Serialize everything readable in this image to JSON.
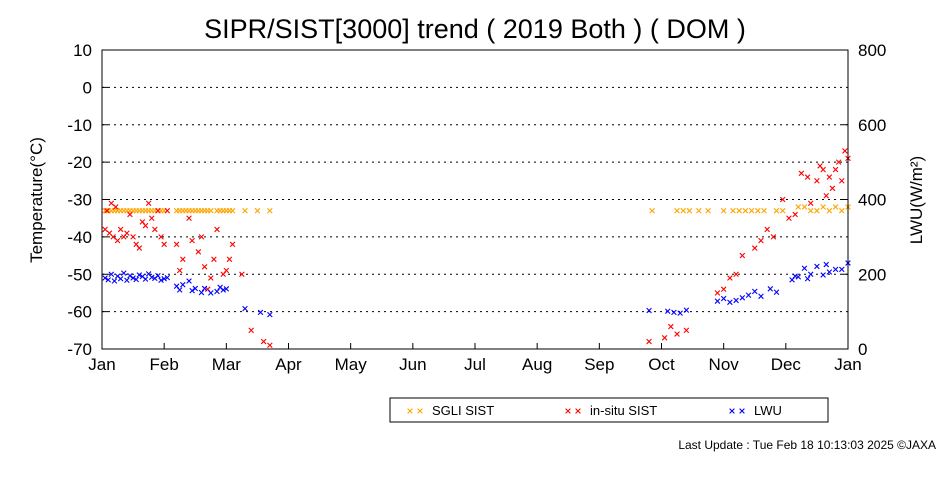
{
  "chart_data": {
    "type": "scatter",
    "title": "SIPR/SIST[3000] trend ( 2019 Both ) ( DOM )",
    "ylabel_left": "Temperature(°C)",
    "ylabel_right": "LWU(W/m²)",
    "ylim_left": [
      -70,
      10
    ],
    "ylim_right": [
      0,
      800
    ],
    "yticks_left": [
      "10",
      "0",
      "-10",
      "-20",
      "-30",
      "-40",
      "-50",
      "-60",
      "-70"
    ],
    "yticks_right": [
      "800",
      "600",
      "400",
      "200",
      "0"
    ],
    "x_range_months": [
      0,
      12
    ],
    "xtick_labels": [
      "Jan",
      "Feb",
      "Mar",
      "Apr",
      "May",
      "Jun",
      "Jul",
      "Aug",
      "Sep",
      "Oct",
      "Nov",
      "Dec",
      "Jan"
    ],
    "grid": "horizontal dotted",
    "legend_position": "bottom-right",
    "series": [
      {
        "name": "SGLI SIST",
        "color": "#ffa500",
        "axis": "left",
        "x": [
          0.05,
          0.1,
          0.15,
          0.2,
          0.25,
          0.3,
          0.35,
          0.4,
          0.45,
          0.5,
          0.55,
          0.6,
          0.65,
          0.7,
          0.75,
          0.8,
          0.85,
          0.9,
          0.95,
          1.0,
          1.2,
          1.25,
          1.3,
          1.35,
          1.4,
          1.45,
          1.5,
          1.55,
          1.6,
          1.65,
          1.7,
          1.75,
          1.85,
          1.9,
          1.95,
          2.0,
          2.05,
          2.1,
          2.3,
          2.5,
          2.7,
          8.85,
          9.25,
          9.35,
          9.45,
          9.6,
          9.75,
          10.0,
          10.15,
          10.25,
          10.35,
          10.45,
          10.55,
          10.65,
          10.85,
          10.95,
          11.2,
          11.3,
          11.4,
          11.5,
          11.6,
          11.7,
          11.8,
          11.9,
          12.0
        ],
        "y": [
          -33,
          -33,
          -33,
          -33,
          -33,
          -33,
          -33,
          -33,
          -33,
          -33,
          -33,
          -33,
          -33,
          -33,
          -33,
          -33,
          -33,
          -33,
          -33,
          -33,
          -33,
          -33,
          -33,
          -33,
          -33,
          -33,
          -33,
          -33,
          -33,
          -33,
          -33,
          -33,
          -33,
          -33,
          -33,
          -33,
          -33,
          -33,
          -33,
          -33,
          -33,
          -33,
          -33,
          -33,
          -33,
          -33,
          -33,
          -33,
          -33,
          -33,
          -33,
          -33,
          -33,
          -33,
          -33,
          -33,
          -32,
          -32,
          -33,
          -33,
          -32,
          -33,
          -32,
          -33,
          -32
        ]
      },
      {
        "name": "in-situ SIST",
        "color": "#ff0000",
        "axis": "left",
        "x": [
          0.05,
          0.08,
          0.12,
          0.15,
          0.18,
          0.22,
          0.25,
          0.3,
          0.35,
          0.4,
          0.45,
          0.5,
          0.55,
          0.6,
          0.65,
          0.7,
          0.75,
          0.8,
          0.85,
          0.9,
          0.95,
          1.0,
          1.05,
          1.2,
          1.25,
          1.3,
          1.4,
          1.45,
          1.55,
          1.6,
          1.65,
          1.7,
          1.75,
          1.8,
          1.85,
          1.95,
          2.0,
          2.05,
          2.1,
          2.25,
          2.4,
          2.6,
          2.7,
          8.8,
          9.05,
          9.15,
          9.25,
          9.4,
          9.9,
          10.0,
          10.1,
          10.2,
          10.3,
          10.5,
          10.6,
          10.7,
          10.8,
          10.95,
          11.05,
          11.15,
          11.25,
          11.35,
          11.4,
          11.5,
          11.55,
          11.6,
          11.65,
          11.7,
          11.75,
          11.8,
          11.85,
          11.9,
          11.95,
          12.0
        ],
        "y": [
          -38,
          -33,
          -39,
          -31,
          -40,
          -32,
          -41,
          -38,
          -40,
          -39,
          -34,
          -40,
          -42,
          -43,
          -36,
          -37,
          -31,
          -35,
          -38,
          -33,
          -40,
          -42,
          -33,
          -42,
          -49,
          -46,
          -35,
          -41,
          -44,
          -40,
          -48,
          -54,
          -51,
          -46,
          -38,
          -50,
          -49,
          -46,
          -42,
          -50,
          -65,
          -68,
          -69,
          -68,
          -67,
          -64,
          -66,
          -65,
          -55,
          -54,
          -51,
          -50,
          -45,
          -43,
          -41,
          -38,
          -40,
          -30,
          -35,
          -34,
          -23,
          -24,
          -31,
          -25,
          -21,
          -22,
          -29,
          -24,
          -27,
          -22,
          -20,
          -25,
          -17,
          -19
        ]
      },
      {
        "name": "LWU",
        "color": "#0000ff",
        "axis": "right",
        "x": [
          0.05,
          0.1,
          0.15,
          0.2,
          0.25,
          0.3,
          0.35,
          0.4,
          0.45,
          0.5,
          0.55,
          0.6,
          0.65,
          0.7,
          0.75,
          0.8,
          0.85,
          0.9,
          0.95,
          1.0,
          1.05,
          1.2,
          1.25,
          1.3,
          1.4,
          1.45,
          1.5,
          1.6,
          1.65,
          1.75,
          1.85,
          1.9,
          1.95,
          2.0,
          2.3,
          2.55,
          2.7,
          8.8,
          9.1,
          9.2,
          9.3,
          9.4,
          9.9,
          10.0,
          10.1,
          10.2,
          10.3,
          10.4,
          10.5,
          10.6,
          10.75,
          10.85,
          11.1,
          11.15,
          11.2,
          11.3,
          11.35,
          11.4,
          11.5,
          11.6,
          11.65,
          11.7,
          11.8,
          11.9,
          12.0
        ],
        "y": [
          190,
          185,
          200,
          182,
          195,
          188,
          203,
          184,
          196,
          190,
          186,
          198,
          194,
          187,
          201,
          192,
          189,
          196,
          184,
          188,
          191,
          168,
          158,
          172,
          182,
          156,
          162,
          151,
          162,
          150,
          154,
          165,
          158,
          161,
          108,
          98,
          92,
          103,
          101,
          98,
          96,
          104,
          128,
          135,
          125,
          130,
          137,
          144,
          154,
          141,
          161,
          152,
          185,
          195,
          193,
          216,
          188,
          200,
          221,
          198,
          226,
          206,
          213,
          213,
          230
        ]
      }
    ]
  },
  "legend": [
    {
      "label": "SGLI SIST",
      "color": "#ffa500"
    },
    {
      "label": "in-situ SIST",
      "color": "#ff0000"
    },
    {
      "label": "LWU",
      "color": "#0000ff"
    }
  ],
  "footer": "Last Update : Tue Feb 18 10:13:03 2025  ©JAXA"
}
